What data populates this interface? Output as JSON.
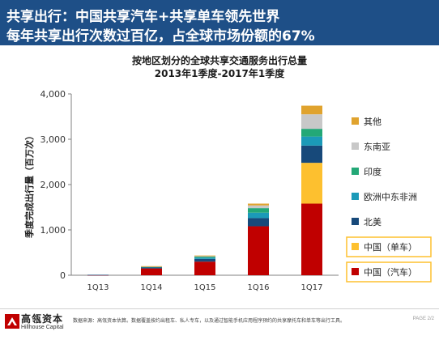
{
  "header": {
    "line1": "共享出行：中国共享汽车+共享单车领先世界",
    "line2": "每年共享出行次数过百亿，占全球市场份额的67%"
  },
  "footer": {
    "logo_cn": "高瓴资本",
    "logo_en": "Hillhouse Capital",
    "source": "数据来源：高瓴资本估算。数据覆盖按约出租车、私人专车，以及通过智能手机应用程序预约的共享摩托车和单车等出行工具。",
    "page": "PAGE 2/2"
  },
  "colors": {
    "header_bg": "#1e4f87",
    "china_car": "#c00000",
    "china_bike": "#fdc02f",
    "north_america": "#17497a",
    "europe_me_africa": "#1b9ab8",
    "india": "#23a877",
    "southeast_asia": "#c8c8c8",
    "other": "#e0a32e"
  },
  "chart_data": {
    "type": "bar",
    "stacked": true,
    "title": "按地区划分的全球共享交通服务出行总量",
    "subtitle": "2013年1季度-2017年1季度",
    "xlabel": "",
    "ylabel": "季度完成出行量（百万次）",
    "ylim": [
      0,
      4000
    ],
    "yticks": [
      0,
      1000,
      2000,
      3000,
      4000
    ],
    "ytick_labels": [
      "0",
      "1,000",
      "2,000",
      "3,000",
      "4,000"
    ],
    "grid": false,
    "legend_position": "right",
    "categories": [
      "1Q13",
      "1Q14",
      "1Q15",
      "1Q16",
      "1Q17"
    ],
    "series": [
      {
        "name": "中国（汽车）",
        "color": "#c00000",
        "values": [
          5,
          150,
          300,
          1080,
          1580
        ]
      },
      {
        "name": "中国（单车）",
        "color": "#fdc02f",
        "values": [
          0,
          0,
          0,
          0,
          900
        ]
      },
      {
        "name": "北美",
        "color": "#17497a",
        "values": [
          5,
          25,
          60,
          180,
          380
        ]
      },
      {
        "name": "欧洲中东非洲",
        "color": "#1b9ab8",
        "values": [
          0,
          10,
          30,
          120,
          200
        ]
      },
      {
        "name": "印度",
        "color": "#23a877",
        "values": [
          0,
          5,
          20,
          100,
          170
        ]
      },
      {
        "name": "东南亚",
        "color": "#c8c8c8",
        "values": [
          0,
          5,
          15,
          60,
          320
        ]
      },
      {
        "name": "其他",
        "color": "#e0a32e",
        "values": [
          0,
          5,
          10,
          40,
          190
        ]
      }
    ]
  }
}
